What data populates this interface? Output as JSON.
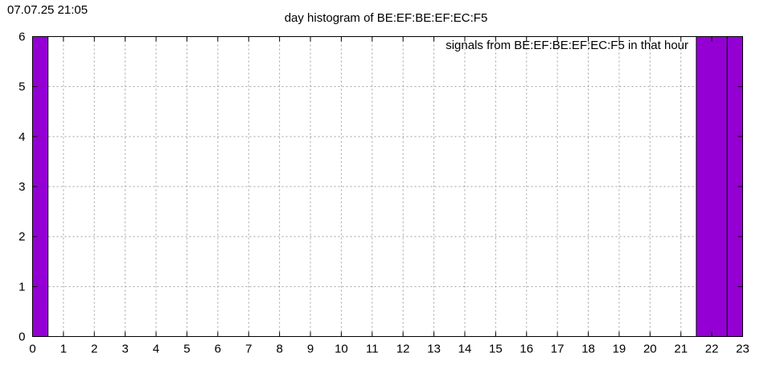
{
  "timestamp": "07.07.25 21:05",
  "chart_data": {
    "type": "bar",
    "title": "day histogram of BE:EF:BE:EF:EC:F5",
    "legend_label": "signals from BE:EF:BE:EF:EC:F5 in that hour",
    "legend_position": "top-right",
    "xlabel": "",
    "ylabel": "",
    "xlim": [
      0,
      23
    ],
    "ylim": [
      0,
      6
    ],
    "x_ticks": [
      0,
      1,
      2,
      3,
      4,
      5,
      6,
      7,
      8,
      9,
      10,
      11,
      12,
      13,
      14,
      15,
      16,
      17,
      18,
      19,
      20,
      21,
      22,
      23
    ],
    "y_ticks": [
      0,
      1,
      2,
      3,
      4,
      5,
      6
    ],
    "grid": true,
    "bar_color": "#9400d3",
    "bars": [
      {
        "x": 0,
        "value": 6
      },
      {
        "x": 22,
        "value": 6
      },
      {
        "x": 23,
        "value": 6
      }
    ]
  }
}
